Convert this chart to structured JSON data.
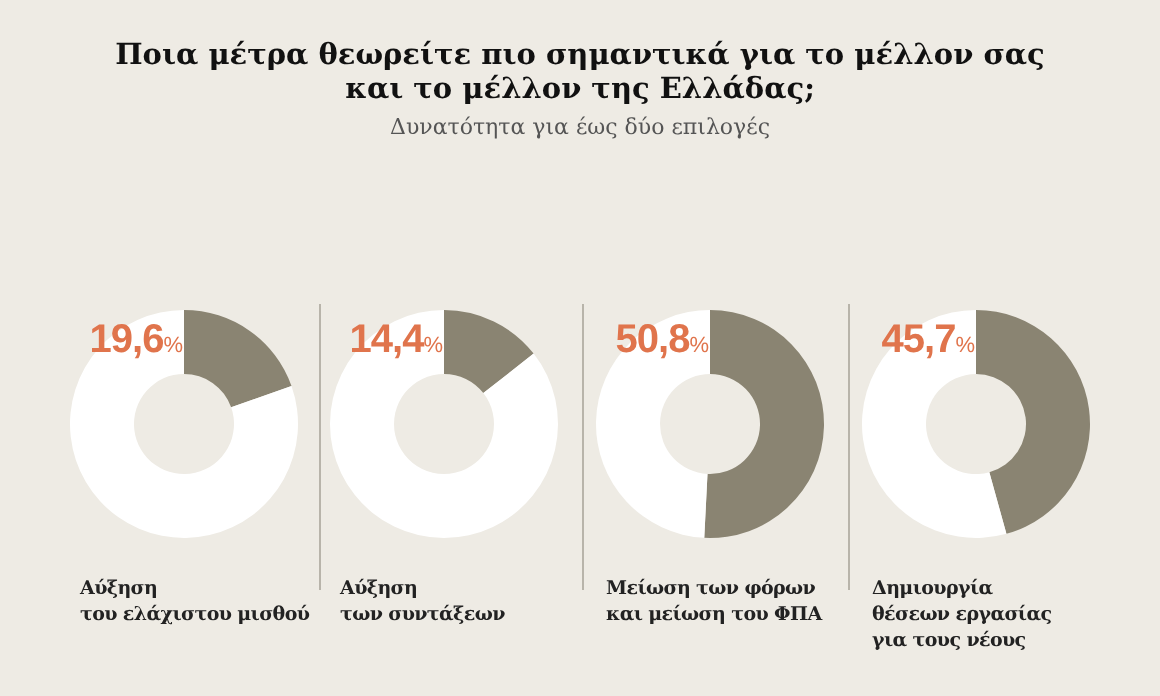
{
  "chart_data": [
    {
      "type": "donut",
      "title": "Ποια μέτρα θεωρείτε πιο σημαντικά για το μέλλον σας\nκαι το μέλλον της Ελλάδας;",
      "subtitle": "Δυνατότητα για έως δύο επιλογές",
      "xlabel": "Αύξηση\nτου ελάχιστου μισθού",
      "categories": [
        null,
        null
      ],
      "values": [
        19.6,
        80.4
      ],
      "colors": [
        "#8a8472",
        "#ffffff"
      ],
      "annotations": [
        "19,6%"
      ]
    },
    {
      "type": "donut",
      "xlabel": "Αύξηση\nτων συντάξεων",
      "categories": [
        null,
        null
      ],
      "values": [
        14.4,
        85.6
      ],
      "colors": [
        "#8a8472",
        "#ffffff"
      ],
      "annotations": [
        "14,4%"
      ]
    },
    {
      "type": "donut",
      "xlabel": "Μείωση των φόρων\nκαι μείωση του ΦΠΑ",
      "categories": [
        null,
        null
      ],
      "values": [
        50.8,
        49.2
      ],
      "colors": [
        "#8a8472",
        "#ffffff"
      ],
      "annotations": [
        "50,8%"
      ]
    },
    {
      "type": "donut",
      "xlabel": "Δημιουργία\nθέσεων εργασίας\nγια τους νέους",
      "categories": [
        null,
        null
      ],
      "values": [
        45.7,
        54.3
      ],
      "colors": [
        "#8a8472",
        "#ffffff"
      ],
      "annotations": [
        "45,7%"
      ]
    }
  ]
}
